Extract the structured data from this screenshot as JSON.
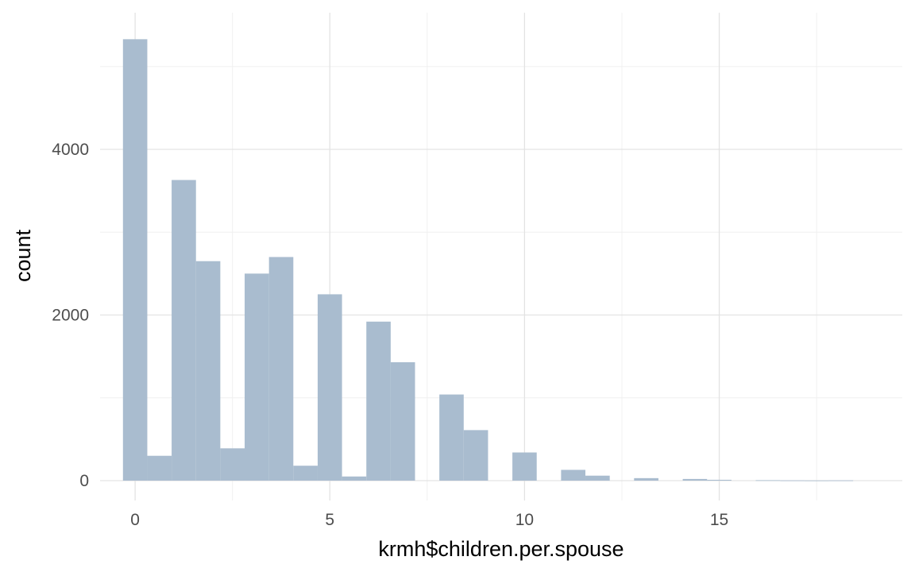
{
  "chart_data": {
    "type": "bar",
    "subtype": "histogram",
    "title": "",
    "xlabel": "krmh$children.per.spouse",
    "ylabel": "count",
    "xlim": [
      -0.9,
      19.7
    ],
    "ylim": [
      -240,
      5650
    ],
    "x_ticks": [
      0,
      5,
      10,
      15
    ],
    "y_ticks": [
      0,
      2000,
      4000
    ],
    "x_tick_labels": [
      "0",
      "5",
      "10",
      "15"
    ],
    "y_tick_labels": [
      "0",
      "2000",
      "4000"
    ],
    "grid": true,
    "fill_color": "#a9bccf",
    "bin_width": 0.625,
    "bins": [
      {
        "x0": -0.3125,
        "x1": 0.3125,
        "count": 5330
      },
      {
        "x0": 0.3125,
        "x1": 0.9375,
        "count": 300
      },
      {
        "x0": 0.9375,
        "x1": 1.5625,
        "count": 3630
      },
      {
        "x0": 1.5625,
        "x1": 2.1875,
        "count": 2650
      },
      {
        "x0": 2.1875,
        "x1": 2.8125,
        "count": 390
      },
      {
        "x0": 2.8125,
        "x1": 3.4375,
        "count": 2500
      },
      {
        "x0": 3.4375,
        "x1": 4.0625,
        "count": 2700
      },
      {
        "x0": 4.0625,
        "x1": 4.6875,
        "count": 180
      },
      {
        "x0": 4.6875,
        "x1": 5.3125,
        "count": 2250
      },
      {
        "x0": 5.3125,
        "x1": 5.9375,
        "count": 50
      },
      {
        "x0": 5.9375,
        "x1": 6.5625,
        "count": 1920
      },
      {
        "x0": 6.5625,
        "x1": 7.1875,
        "count": 1430
      },
      {
        "x0": 7.1875,
        "x1": 7.8125,
        "count": 0
      },
      {
        "x0": 7.8125,
        "x1": 8.4375,
        "count": 1040
      },
      {
        "x0": 8.4375,
        "x1": 9.0625,
        "count": 610
      },
      {
        "x0": 9.0625,
        "x1": 9.6875,
        "count": 0
      },
      {
        "x0": 9.6875,
        "x1": 10.3125,
        "count": 340
      },
      {
        "x0": 10.3125,
        "x1": 10.9375,
        "count": 0
      },
      {
        "x0": 10.9375,
        "x1": 11.5625,
        "count": 130
      },
      {
        "x0": 11.5625,
        "x1": 12.1875,
        "count": 60
      },
      {
        "x0": 12.1875,
        "x1": 12.8125,
        "count": 0
      },
      {
        "x0": 12.8125,
        "x1": 13.4375,
        "count": 30
      },
      {
        "x0": 13.4375,
        "x1": 14.0625,
        "count": 0
      },
      {
        "x0": 14.0625,
        "x1": 14.6875,
        "count": 20
      },
      {
        "x0": 14.6875,
        "x1": 15.3125,
        "count": 10
      },
      {
        "x0": 15.3125,
        "x1": 15.9375,
        "count": 0
      },
      {
        "x0": 15.9375,
        "x1": 16.5625,
        "count": 5
      },
      {
        "x0": 16.5625,
        "x1": 17.1875,
        "count": 3
      },
      {
        "x0": 17.1875,
        "x1": 17.8125,
        "count": 2
      },
      {
        "x0": 17.8125,
        "x1": 18.4375,
        "count": 3
      }
    ]
  }
}
